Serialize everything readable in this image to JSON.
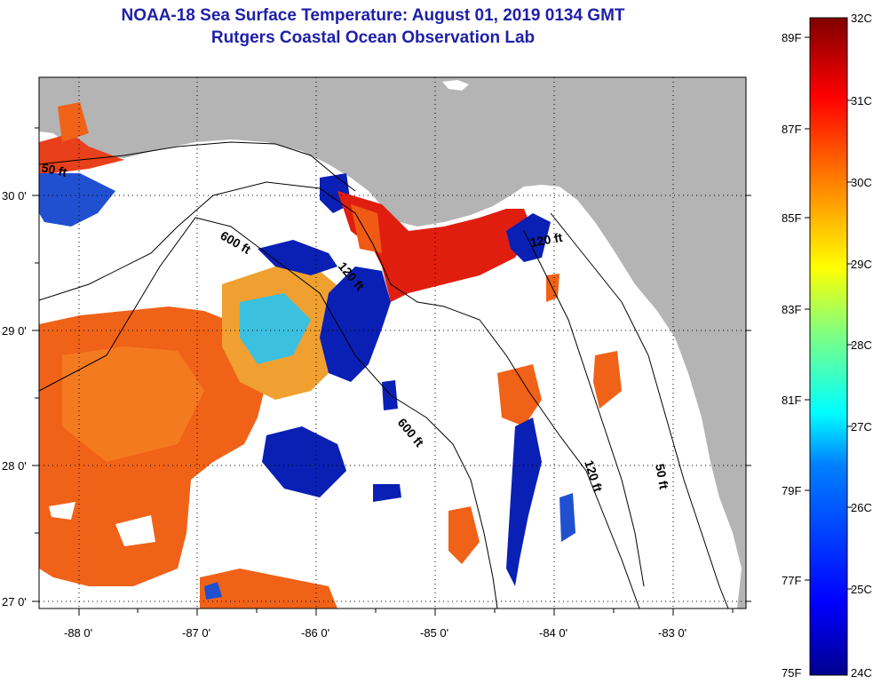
{
  "title": {
    "line1": "NOAA-18 Sea Surface Temperature:  August 01, 2019 0134 GMT",
    "line2": "Rutgers Coastal Ocean Observation Lab"
  },
  "map": {
    "lon_labels": [
      "-88 0'",
      "-87 0'",
      "-86 0'",
      "-85 0'",
      "-84 0'",
      "-83 0'"
    ],
    "lat_labels": [
      "30 0'",
      "29 0'",
      "28 0'",
      "27 0'"
    ],
    "contour_labels": [
      "50 ft",
      "600 ft",
      "120 ft",
      "120 ft",
      "600 ft",
      "120 ft",
      "50 ft"
    ],
    "colors": {
      "land": "#b4b4b4",
      "ocean_missing": "#ffffff",
      "warm": "#f05a14",
      "hot": "#e01e10",
      "cool": "#0a20b4",
      "mid": "#2ab4f0"
    }
  },
  "colorbar": {
    "celsius_labels": [
      "32C",
      "31C",
      "30C",
      "29C",
      "28C",
      "27C",
      "26C",
      "25C",
      "24C"
    ],
    "fahrenheit_labels": [
      "89F",
      "87F",
      "85F",
      "83F",
      "81F",
      "79F",
      "77F",
      "75F"
    ],
    "colors": [
      "#00008f",
      "#0000ff",
      "#0080ff",
      "#00ffff",
      "#80ff80",
      "#ffff00",
      "#ff8000",
      "#ff0000",
      "#800000"
    ]
  }
}
